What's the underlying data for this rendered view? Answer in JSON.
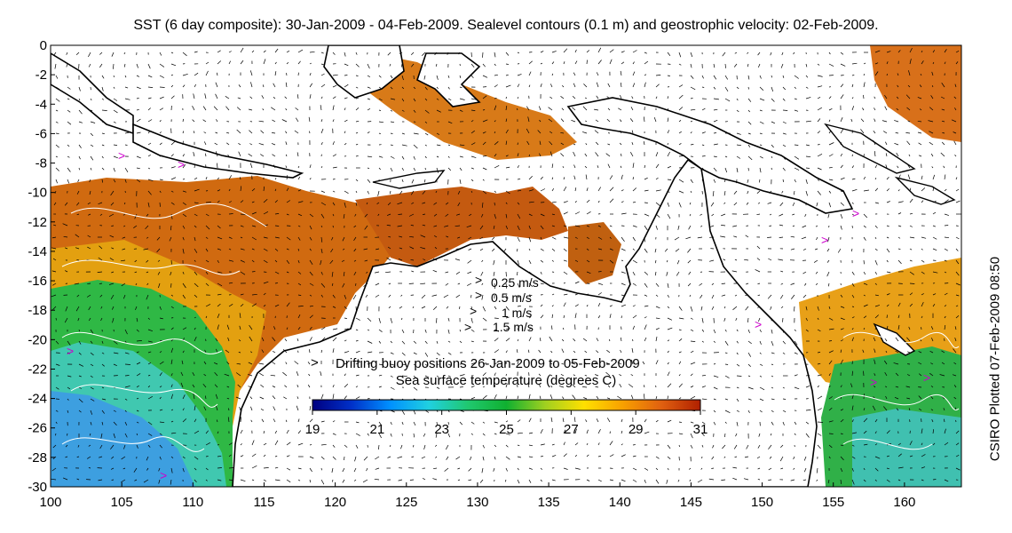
{
  "title": "SST (6 day composite): 30-Jan-2009 - 04-Feb-2009. Sealevel contours (0.1 m) and geostrophic velocity: 02-Feb-2009.",
  "credit": "CSIRO Plotted 07-Feb-2009 08:50",
  "axes": {
    "x_ticks": [
      "100",
      "105",
      "110",
      "115",
      "120",
      "125",
      "130",
      "135",
      "140",
      "145",
      "150",
      "155",
      "160"
    ],
    "y_ticks": [
      "0",
      "-2",
      "-4",
      "-6",
      "-8",
      "-10",
      "-12",
      "-14",
      "-16",
      "-18",
      "-20",
      "-22",
      "-24",
      "-26",
      "-28",
      "-30"
    ],
    "x_range": [
      100,
      164
    ],
    "y_range": [
      -30,
      0
    ]
  },
  "velocity_legend": [
    {
      "label": "0.25 m/s"
    },
    {
      "label": "0.5 m/s"
    },
    {
      "label": "1 m/s"
    },
    {
      "label": "1.5 m/s"
    }
  ],
  "buoy_legend": {
    "symbol": ">",
    "label": "Drifting buoy positions 26-Jan-2009 to 05-Feb-2009",
    "color": "#cc00cc"
  },
  "colorbar": {
    "title": "Sea surface temperature (degrees C)",
    "ticks": [
      "19",
      "21",
      "23",
      "25",
      "27",
      "29",
      "31"
    ],
    "range": [
      19,
      31
    ],
    "colors": [
      "#000080",
      "#0030c8",
      "#0090ff",
      "#20d0e0",
      "#20c870",
      "#10b030",
      "#a0d020",
      "#ffe000",
      "#f8a000",
      "#e06010",
      "#b02000"
    ]
  },
  "colors": {
    "land": "#ffffff",
    "coast": "#000000",
    "contour": "#ffffff",
    "buoy": "#cc00cc"
  }
}
